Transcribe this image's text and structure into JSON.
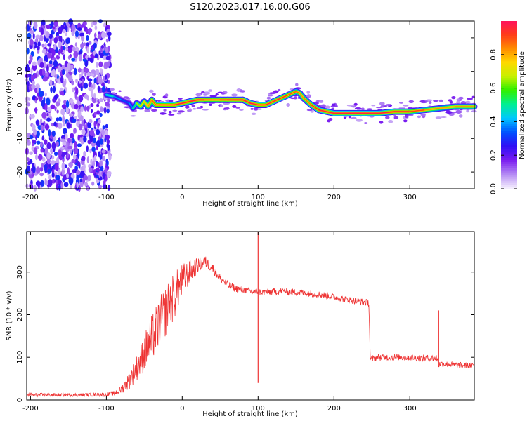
{
  "figure": {
    "title": "S120.2023.017.16.00.G06"
  },
  "chart_data": [
    {
      "type": "heatmap",
      "name": "spectrogram",
      "xlabel": "Height of straight line (km)",
      "ylabel": "Frequency (Hz)",
      "xlim": [
        -205,
        385
      ],
      "ylim": [
        -25,
        25
      ],
      "xticks": [
        -200,
        -100,
        0,
        100,
        200,
        300
      ],
      "yticks": [
        -20,
        -10,
        0,
        10,
        20
      ],
      "colorbar": {
        "label": "Normalized spectral amplitude",
        "range": [
          0,
          1
        ],
        "ticks": [
          0.0,
          0.2,
          0.4,
          0.6,
          0.8
        ],
        "tick_labels": [
          "0.0",
          "0.2",
          "0.4",
          "0.6",
          "0.8"
        ],
        "colormap": [
          "#f3ecfd",
          "#b58cf4",
          "#7a1cf0",
          "#2f10f5",
          "#0050ff",
          "#00c8ff",
          "#00f090",
          "#30f000",
          "#c8f000",
          "#ffd800",
          "#ff8a00",
          "#ff3a1a",
          "#ff1060"
        ]
      },
      "noise_region": {
        "x_range": [
          -205,
          -95
        ],
        "y_range": [
          -25,
          25
        ],
        "level": "high, scattered"
      },
      "ridge": {
        "x": [
          -100,
          -90,
          -80,
          -70,
          -65,
          -60,
          -55,
          -50,
          -45,
          -40,
          -35,
          -30,
          -20,
          -10,
          0,
          10,
          20,
          30,
          40,
          50,
          60,
          70,
          80,
          90,
          100,
          110,
          120,
          130,
          140,
          150,
          155,
          160,
          170,
          180,
          190,
          200,
          220,
          240,
          260,
          280,
          300,
          320,
          340,
          360,
          385
        ],
        "y": [
          3,
          2.5,
          1.5,
          0.5,
          -1,
          0.5,
          -0.5,
          1,
          -0.5,
          1.5,
          0,
          0,
          0,
          0,
          0.5,
          1,
          1.5,
          1.5,
          1.5,
          1.5,
          1.5,
          1.5,
          1.5,
          0.5,
          0,
          0,
          1,
          2,
          3,
          4,
          3.5,
          2,
          0,
          -1.5,
          -2,
          -2.5,
          -2.5,
          -2.5,
          -2.5,
          -2,
          -2,
          -1.5,
          -1,
          -0.5,
          -0.5
        ],
        "amplitude": [
          0.55,
          0.4,
          0.35,
          0.3,
          0.45,
          0.6,
          0.7,
          0.75,
          0.8,
          0.85,
          0.9,
          0.92,
          0.92,
          0.93,
          0.95,
          0.95,
          0.95,
          0.93,
          0.85,
          0.9,
          0.93,
          0.95,
          0.95,
          0.95,
          0.95,
          0.92,
          0.95,
          0.93,
          0.9,
          0.88,
          0.85,
          0.8,
          0.9,
          0.95,
          0.95,
          0.95,
          0.97,
          0.97,
          0.95,
          0.96,
          0.95,
          0.85,
          0.8,
          0.8,
          0.85
        ]
      }
    },
    {
      "type": "line",
      "name": "snr",
      "xlabel": "Height of straight line (km)",
      "ylabel": "SNR (10 * v/v)",
      "xlim": [
        -205,
        385
      ],
      "ylim": [
        0,
        395
      ],
      "xticks": [
        -200,
        -100,
        0,
        100,
        200,
        300
      ],
      "yticks": [
        0,
        100,
        200,
        300
      ],
      "color": "#ee3333",
      "series": [
        {
          "x": [
            -205,
            -180,
            -150,
            -120,
            -100,
            -90,
            -80,
            -70,
            -60,
            -50,
            -40,
            -30,
            -20,
            -10,
            0,
            10,
            20,
            30,
            40,
            50,
            60,
            70,
            80,
            90,
            97,
            100,
            102,
            110,
            130,
            150,
            170,
            190,
            210,
            230,
            246,
            248,
            260,
            280,
            300,
            320,
            336,
            338,
            340,
            360,
            385
          ],
          "y": [
            12,
            12,
            12,
            12,
            13,
            15,
            25,
            45,
            75,
            110,
            145,
            180,
            215,
            245,
            280,
            300,
            315,
            325,
            310,
            285,
            270,
            262,
            258,
            255,
            253,
            255,
            253,
            253,
            255,
            253,
            250,
            245,
            238,
            232,
            228,
            95,
            100,
            100,
            100,
            98,
            98,
            82,
            85,
            82,
            80
          ],
          "noise": [
            4,
            4,
            4,
            4,
            5,
            6,
            10,
            20,
            30,
            45,
            55,
            60,
            60,
            55,
            40,
            28,
            18,
            14,
            12,
            10,
            9,
            9,
            8,
            8,
            8,
            8,
            8,
            8,
            8,
            8,
            8,
            8,
            8,
            8,
            8,
            8,
            8,
            8,
            8,
            8,
            8,
            7,
            7,
            7,
            7
          ]
        }
      ],
      "spikes": [
        {
          "x": 100,
          "min": 40,
          "max": 395
        },
        {
          "x": 338,
          "min": 80,
          "max": 210
        }
      ]
    }
  ]
}
